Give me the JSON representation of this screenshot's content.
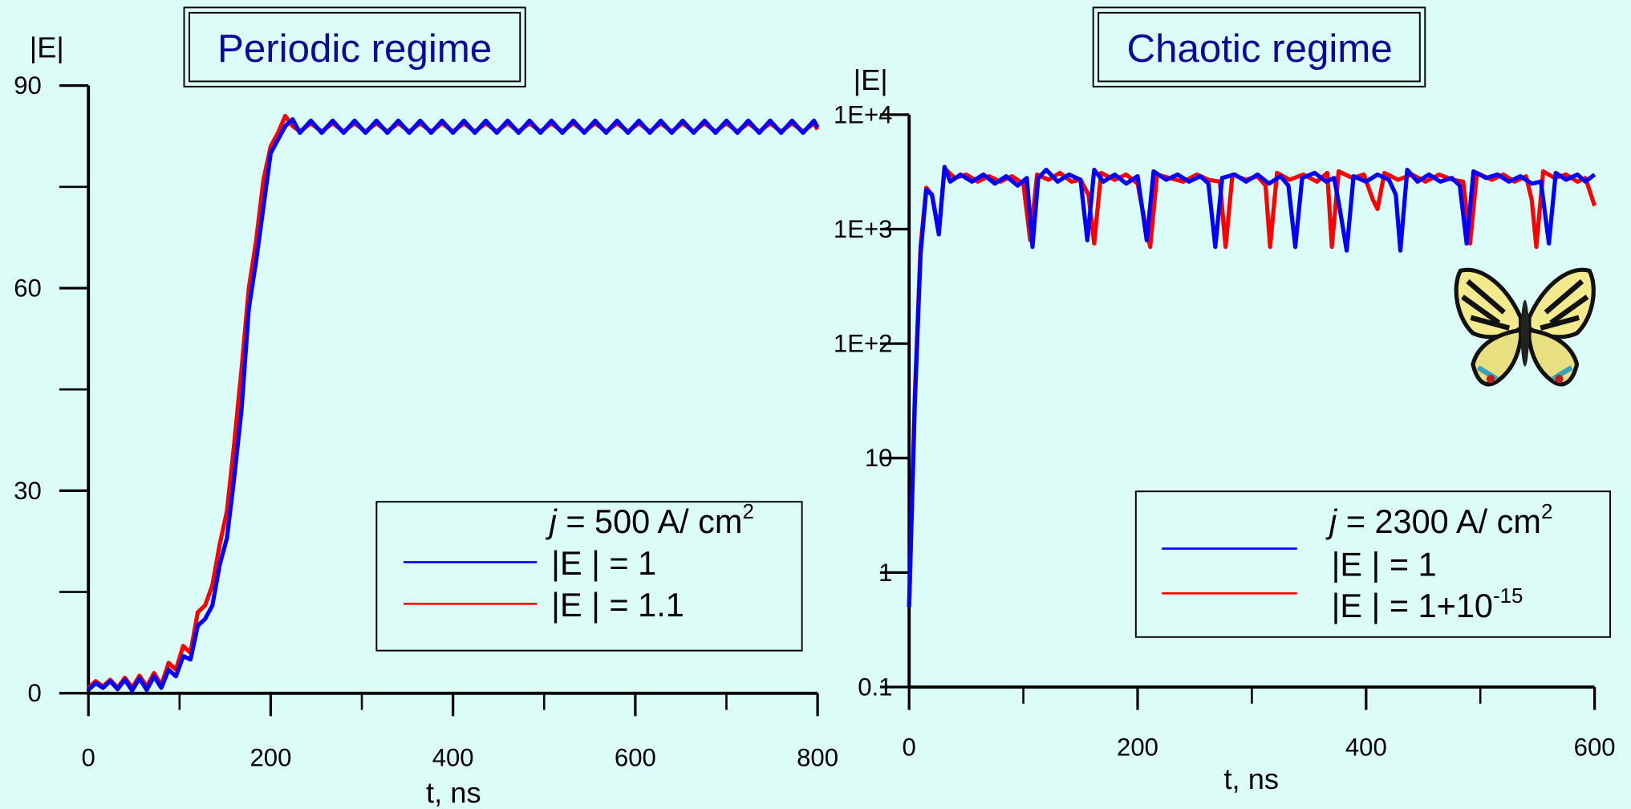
{
  "chart_data": [
    {
      "type": "line",
      "title": "Periodic regime",
      "xlabel": "t, ns",
      "ylabel": "|E|",
      "xlim": [
        0,
        800
      ],
      "ylim": [
        0,
        90
      ],
      "xticks": [
        0,
        200,
        400,
        600,
        800
      ],
      "minor_xticks": [
        100,
        300,
        500,
        700
      ],
      "yticks": [
        0,
        30,
        60,
        90
      ],
      "minor_yticks": [
        15,
        45,
        75
      ],
      "log_y": false,
      "legend": "lower right",
      "legend_title": [
        "j",
        " =  500 A/ cm",
        "2"
      ],
      "series": [
        {
          "name": "|E | = 1",
          "color": "#0000ff",
          "x": [
            0,
            8,
            16,
            24,
            32,
            40,
            48,
            56,
            64,
            72,
            80,
            88,
            96,
            104,
            112,
            120,
            128,
            136,
            144,
            152,
            160,
            168,
            176,
            184,
            192,
            200,
            208,
            216,
            224,
            232,
            244,
            256,
            268,
            280,
            292,
            304,
            316,
            328,
            340,
            352,
            364,
            376,
            388,
            400,
            412,
            424,
            436,
            448,
            460,
            472,
            484,
            496,
            508,
            520,
            532,
            544,
            556,
            568,
            580,
            592,
            604,
            616,
            628,
            640,
            652,
            664,
            676,
            688,
            700,
            712,
            724,
            736,
            748,
            760,
            772,
            784,
            796,
            800
          ],
          "values": [
            0.5,
            1.5,
            0.8,
            1.8,
            0.6,
            2,
            0.4,
            2.2,
            0.5,
            2.5,
            0.8,
            3.5,
            2.5,
            5.5,
            5,
            10,
            11,
            13,
            19,
            23,
            32,
            42,
            57,
            64,
            72,
            80,
            82,
            84,
            85,
            83,
            84.8,
            83,
            84.8,
            83,
            84.8,
            83,
            84.8,
            83,
            84.8,
            83,
            84.8,
            83,
            84.8,
            83,
            84.8,
            83,
            84.8,
            83,
            84.8,
            83,
            84.8,
            83,
            84.8,
            83,
            84.8,
            83,
            84.8,
            83,
            84.8,
            83,
            84.8,
            83,
            84.8,
            83,
            84.8,
            83,
            84.8,
            83,
            84.8,
            83,
            84.8,
            83,
            84.8,
            83,
            84.8,
            83,
            84.8,
            83.8
          ]
        },
        {
          "name": "|E |  = 1.1",
          "color": "#ff0000",
          "x": [
            0,
            8,
            16,
            24,
            32,
            40,
            48,
            56,
            64,
            72,
            80,
            88,
            96,
            104,
            112,
            120,
            128,
            136,
            144,
            152,
            160,
            168,
            176,
            184,
            192,
            200,
            208,
            216,
            224,
            232,
            244,
            256,
            268,
            280,
            292,
            304,
            316,
            328,
            340,
            352,
            364,
            376,
            388,
            400,
            412,
            424,
            436,
            448,
            460,
            472,
            484,
            496,
            508,
            520,
            532,
            544,
            556,
            568,
            580,
            592,
            604,
            616,
            628,
            640,
            652,
            664,
            676,
            688,
            700,
            712,
            724,
            736,
            748,
            760,
            772,
            784,
            796,
            800
          ],
          "values": [
            0.8,
            1.8,
            1,
            2,
            0.8,
            2.3,
            0.8,
            2.6,
            1,
            3,
            1.2,
            4.5,
            3.5,
            7,
            6,
            12,
            13,
            16,
            22,
            27,
            37,
            48,
            60,
            67,
            76,
            81,
            83,
            85.5,
            84,
            83.2,
            84.4,
            83.2,
            84.4,
            83.2,
            84.4,
            83.2,
            84.4,
            83.2,
            84.4,
            83.2,
            84.4,
            83.2,
            84.4,
            83.2,
            84.4,
            83.2,
            84.4,
            83.2,
            84.4,
            83.2,
            84.4,
            83.2,
            84.4,
            83.2,
            84.4,
            83.2,
            84.4,
            83.2,
            84.4,
            83.2,
            84.4,
            83.2,
            84.4,
            83.2,
            84.4,
            83.2,
            84.4,
            83.2,
            84.4,
            83.2,
            84.4,
            83.2,
            84.4,
            83.2,
            84.4,
            83.2,
            84.4,
            83.5
          ]
        }
      ]
    },
    {
      "type": "line",
      "title": "Chaotic regime",
      "xlabel": "t, ns",
      "ylabel": "|E|",
      "xlim": [
        0,
        600
      ],
      "ylim": [
        0.1,
        10000
      ],
      "xticks": [
        0,
        200,
        400,
        600
      ],
      "minor_xticks": [
        100,
        300,
        500
      ],
      "yticks": [
        0.1,
        1,
        10,
        {
          "value": 100,
          "label": "1E+2"
        },
        {
          "value": 1000,
          "label": "1E+3"
        },
        {
          "value": 10000,
          "label": "1E+4"
        }
      ],
      "minor_yticks": [],
      "log_y": true,
      "legend": "lower right",
      "legend_title": [
        "j",
        " =  2300 A/ cm",
        "2"
      ],
      "series": [
        {
          "name": "|E | = 1",
          "color": "#0000ff",
          "x": [
            0,
            5,
            10,
            15,
            20,
            26,
            31,
            36,
            45,
            55,
            65,
            75,
            85,
            95,
            103,
            108,
            113,
            120,
            130,
            140,
            150,
            156,
            162,
            170,
            180,
            190,
            200,
            208,
            214,
            225,
            235,
            245,
            255,
            262,
            268,
            274,
            285,
            295,
            305,
            315,
            325,
            332,
            338,
            344,
            355,
            365,
            372,
            377,
            383,
            389,
            400,
            410,
            420,
            426,
            430,
            436,
            445,
            455,
            465,
            475,
            482,
            488,
            494,
            505,
            515,
            525,
            535,
            545,
            553,
            560,
            566,
            575,
            585,
            592,
            600
          ],
          "values": [
            0.5,
            30,
            600,
            2200,
            2000,
            900,
            3500,
            2600,
            3000,
            2600,
            3000,
            2500,
            2900,
            2400,
            2800,
            700,
            2800,
            3300,
            2600,
            3000,
            2700,
            800,
            3300,
            2600,
            3000,
            2500,
            2900,
            800,
            3200,
            2700,
            3000,
            2600,
            2900,
            2500,
            700,
            2800,
            3000,
            2600,
            3000,
            2500,
            2900,
            2400,
            700,
            2800,
            3100,
            2600,
            2800,
            1500,
            650,
            2900,
            2600,
            3000,
            2700,
            2000,
            650,
            3300,
            2600,
            3000,
            2600,
            2800,
            2400,
            750,
            3200,
            2800,
            3000,
            2600,
            2900,
            2500,
            2600,
            750,
            3100,
            2700,
            3000,
            2600,
            3000
          ]
        },
        {
          "name": "|E |  = 1+10",
          "name_sup": "-15",
          "color": "#ff0000",
          "x": [
            0,
            5,
            10,
            15,
            20,
            26,
            31,
            40,
            50,
            60,
            70,
            80,
            90,
            100,
            106,
            112,
            122,
            132,
            142,
            150,
            157,
            162,
            168,
            180,
            190,
            200,
            206,
            211,
            217,
            228,
            240,
            252,
            262,
            272,
            277,
            283,
            295,
            305,
            312,
            316,
            322,
            333,
            345,
            357,
            366,
            370,
            376,
            388,
            398,
            406,
            410,
            416,
            428,
            440,
            452,
            464,
            476,
            485,
            491,
            497,
            510,
            520,
            530,
            540,
            545,
            549,
            555,
            565,
            575,
            585,
            592,
            600
          ],
          "values": [
            0.5,
            35,
            700,
            2300,
            2000,
            950,
            3400,
            2800,
            3000,
            2600,
            2900,
            2600,
            2900,
            2500,
            800,
            3000,
            2700,
            3100,
            2600,
            2700,
            2000,
            750,
            3100,
            2700,
            3000,
            2500,
            1200,
            700,
            3000,
            2800,
            2600,
            3000,
            2700,
            2600,
            700,
            3000,
            2700,
            2900,
            2400,
            700,
            3100,
            2700,
            3000,
            2600,
            3100,
            700,
            3200,
            2800,
            3000,
            1800,
            1500,
            3100,
            2700,
            3000,
            2600,
            3000,
            2700,
            2600,
            750,
            3100,
            2700,
            3000,
            2600,
            2900,
            1800,
            700,
            3200,
            2800,
            3000,
            2600,
            2800,
            1600
          ]
        }
      ]
    }
  ]
}
